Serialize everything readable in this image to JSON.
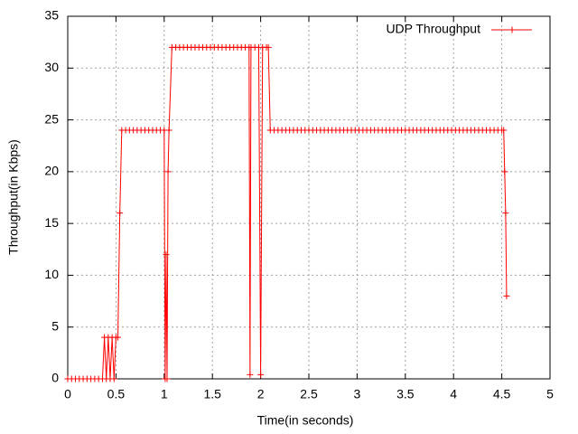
{
  "chart_data": {
    "type": "line",
    "xlabel": "Time(in seconds)",
    "ylabel": "Throughput(in Kbps)",
    "x": [
      0,
      0.04,
      0.08,
      0.12,
      0.16,
      0.2,
      0.24,
      0.28,
      0.32,
      0.36,
      0.38,
      0.4,
      0.42,
      0.44,
      0.46,
      0.48,
      0.5,
      0.52,
      0.54,
      0.56,
      0.6,
      0.64,
      0.68,
      0.72,
      0.76,
      0.8,
      0.84,
      0.88,
      0.92,
      0.96,
      1,
      1.01,
      1.02,
      1.03,
      1.04,
      1.05,
      1.08,
      1.12,
      1.16,
      1.2,
      1.24,
      1.28,
      1.32,
      1.36,
      1.4,
      1.44,
      1.48,
      1.52,
      1.56,
      1.6,
      1.64,
      1.68,
      1.72,
      1.76,
      1.8,
      1.84,
      1.88,
      1.89,
      1.9,
      1.94,
      1.98,
      2,
      2.02,
      2.06,
      2.08,
      2.1,
      2.14,
      2.18,
      2.22,
      2.26,
      2.3,
      2.34,
      2.38,
      2.42,
      2.46,
      2.5,
      2.54,
      2.58,
      2.62,
      2.66,
      2.7,
      2.74,
      2.78,
      2.82,
      2.86,
      2.9,
      2.94,
      2.98,
      3.02,
      3.06,
      3.1,
      3.14,
      3.18,
      3.22,
      3.26,
      3.3,
      3.34,
      3.38,
      3.42,
      3.46,
      3.5,
      3.54,
      3.58,
      3.62,
      3.66,
      3.7,
      3.74,
      3.78,
      3.82,
      3.86,
      3.9,
      3.94,
      3.98,
      4.02,
      4.06,
      4.1,
      4.14,
      4.18,
      4.22,
      4.26,
      4.3,
      4.34,
      4.38,
      4.42,
      4.46,
      4.5,
      4.52,
      4.53,
      4.54,
      4.55
    ],
    "series": [
      {
        "name": "UDP Throughput",
        "color": "#ff0000",
        "values": [
          0,
          0,
          0,
          0,
          0,
          0,
          0,
          0,
          0,
          0,
          4,
          0,
          4,
          0,
          4,
          0,
          4,
          4,
          16,
          24,
          24,
          24,
          24,
          24,
          24,
          24,
          24,
          24,
          24,
          24,
          24,
          0,
          12,
          0,
          20,
          24,
          32,
          32,
          32,
          32,
          32,
          32,
          32,
          32,
          32,
          32,
          32,
          32,
          32,
          32,
          32,
          32,
          32,
          32,
          32,
          32,
          32,
          0.4,
          32,
          32,
          32,
          0.4,
          32,
          32,
          32,
          24,
          24,
          24,
          24,
          24,
          24,
          24,
          24,
          24,
          24,
          24,
          24,
          24,
          24,
          24,
          24,
          24,
          24,
          24,
          24,
          24,
          24,
          24,
          24,
          24,
          24,
          24,
          24,
          24,
          24,
          24,
          24,
          24,
          24,
          24,
          24,
          24,
          24,
          24,
          24,
          24,
          24,
          24,
          24,
          24,
          24,
          24,
          24,
          24,
          24,
          24,
          24,
          24,
          24,
          24,
          24,
          24,
          24,
          24,
          24,
          24,
          24,
          20,
          16,
          8
        ]
      }
    ],
    "xlim": [
      0,
      5
    ],
    "ylim": [
      0,
      35
    ],
    "xticks": [
      0,
      0.5,
      1,
      1.5,
      2,
      2.5,
      3,
      3.5,
      4,
      4.5,
      5
    ],
    "yticks": [
      0,
      5,
      10,
      15,
      20,
      25,
      30,
      35
    ],
    "grid": true,
    "legend": "top-right"
  }
}
